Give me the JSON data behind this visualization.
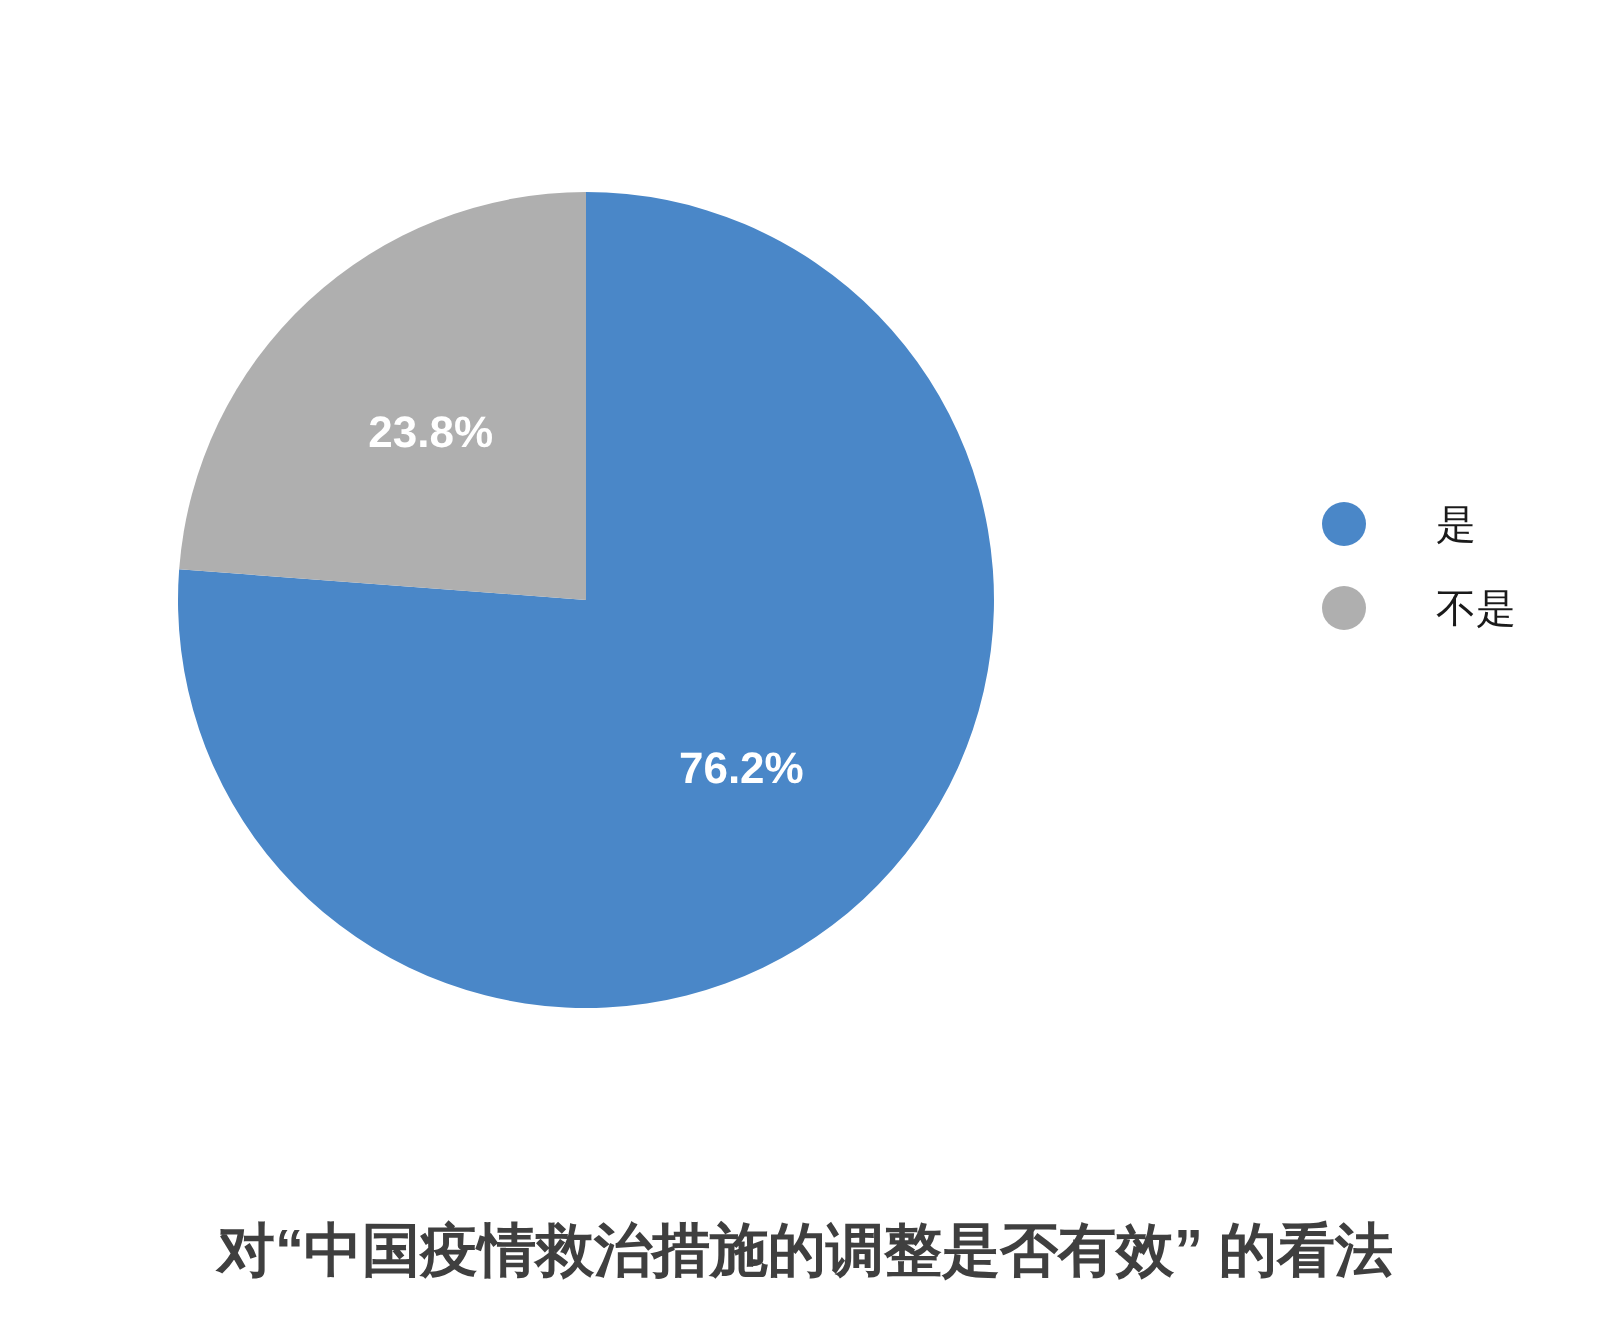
{
  "chart_data": {
    "type": "pie",
    "title": "对“中国疫情救治措施的调整是否有效” 的看法",
    "categories": [
      "是",
      "不是"
    ],
    "values": [
      76.2,
      23.8
    ],
    "colors": [
      "#4a87c8",
      "#afafaf"
    ],
    "value_labels": [
      "76.2%",
      "23.8%"
    ],
    "legend": "right"
  }
}
